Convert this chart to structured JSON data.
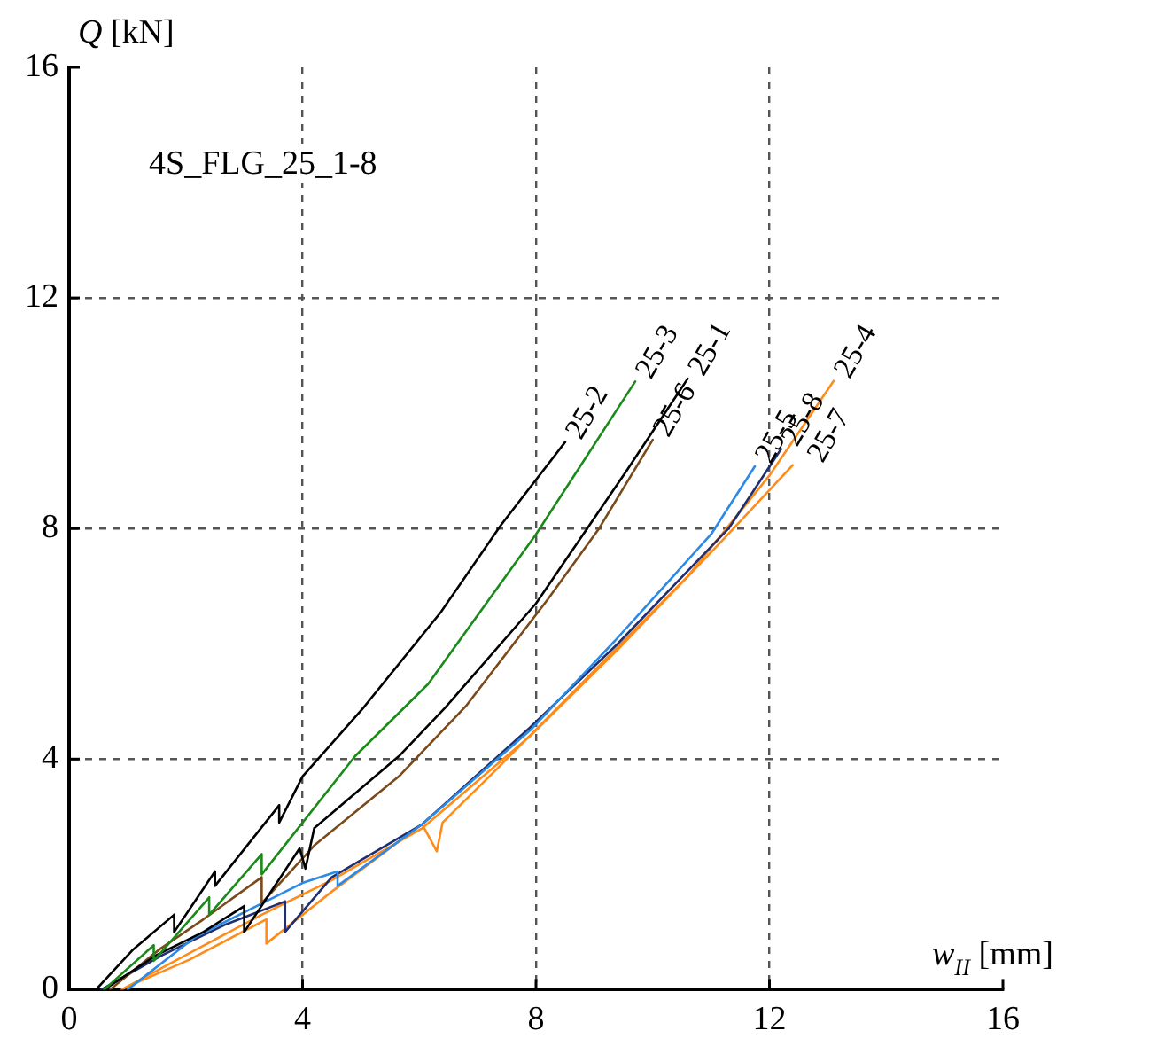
{
  "chart_data": {
    "type": "line",
    "xlabel": "w$_{II}$ [mm]",
    "ylabel": "Q [kN]",
    "annotations": [
      "4S_FLG_25_1-8"
    ],
    "xlim": [
      0,
      16
    ],
    "xticks": [
      0,
      4,
      8,
      12,
      16
    ],
    "ylim": [
      0,
      16
    ],
    "yticks": [
      0,
      4,
      8,
      12,
      16
    ],
    "grid": true,
    "legend": false,
    "marker": "none",
    "line_style": "solid",
    "series": [
      {
        "name": "25-2",
        "color": "#000000",
        "x": [
          0.46,
          1.1,
          1.8,
          1.8,
          2.5,
          2.5,
          3.6,
          3.6,
          4.0,
          5.05,
          6.37,
          7.4,
          8.5
        ],
        "values": [
          0,
          0.7,
          1.3,
          1.0,
          2.05,
          1.8,
          3.2,
          2.9,
          3.7,
          4.9,
          6.55,
          8.06,
          9.5
        ]
      },
      {
        "name": "25-3",
        "color": "#1a8a1a",
        "x": [
          0.6,
          1.45,
          1.45,
          2.4,
          2.4,
          3.3,
          3.3,
          4.9,
          6.15,
          8.0,
          9.7
        ],
        "values": [
          0,
          0.77,
          0.5,
          1.6,
          1.3,
          2.35,
          2.0,
          4.05,
          5.3,
          7.9,
          10.55
        ]
      },
      {
        "name": "25-1",
        "color": "#000000",
        "x": [
          0.6,
          1.5,
          2.3,
          3.0,
          3.0,
          3.95,
          4.05,
          4.2,
          5.65,
          6.45,
          8.0,
          9.55,
          10.6
        ],
        "values": [
          0,
          0.6,
          1.0,
          1.45,
          1.0,
          2.45,
          2.1,
          2.8,
          4.05,
          4.9,
          6.7,
          9.0,
          10.6
        ]
      },
      {
        "name": "25-6",
        "color": "#7a4a1a",
        "x": [
          0.7,
          1.55,
          2.3,
          3.3,
          3.3,
          4.2,
          5.65,
          6.8,
          8.2,
          9.08,
          10.0
        ],
        "values": [
          0,
          0.7,
          1.22,
          1.95,
          1.5,
          2.5,
          3.7,
          4.92,
          6.77,
          8.0,
          9.54
        ]
      },
      {
        "name": "25-5",
        "color": "#2a8ae6",
        "x": [
          1.0,
          1.13,
          2.17,
          4.0,
          4.6,
          4.6,
          6.05,
          7.9,
          9.35,
          11.0,
          11.75
        ],
        "values": [
          0,
          0.1,
          0.92,
          1.85,
          2.05,
          1.8,
          2.87,
          4.5,
          6.05,
          7.9,
          9.08
        ]
      },
      {
        "name": "25-8",
        "color": "#1f2f6f",
        "x": [
          0.55,
          1.6,
          2.68,
          3.7,
          3.7,
          4.5,
          6.05,
          7.9,
          9.4,
          11.3,
          12.2
        ],
        "values": [
          0,
          0.6,
          1.13,
          1.53,
          1.0,
          1.95,
          2.87,
          4.55,
          6.0,
          8.0,
          9.38
        ]
      },
      {
        "name": "25-7",
        "color": "#ff8c1a",
        "x": [
          0.9,
          2.0,
          3.3,
          4.5,
          6.05,
          7.9,
          9.4,
          11.2,
          12.4
        ],
        "values": [
          0,
          0.6,
          1.3,
          1.9,
          2.8,
          4.4,
          5.9,
          7.8,
          9.1
        ]
      },
      {
        "name": "25-4",
        "color": "#ff8c1a",
        "x": [
          1.0,
          2.06,
          3.38,
          3.38,
          4.5,
          6.05,
          6.3,
          6.4,
          7.3,
          8.7,
          10.6,
          12.0,
          13.1
        ],
        "values": [
          0.05,
          0.52,
          1.22,
          0.8,
          1.7,
          2.87,
          2.4,
          2.9,
          3.8,
          5.23,
          7.17,
          8.92,
          10.56
        ]
      }
    ]
  }
}
